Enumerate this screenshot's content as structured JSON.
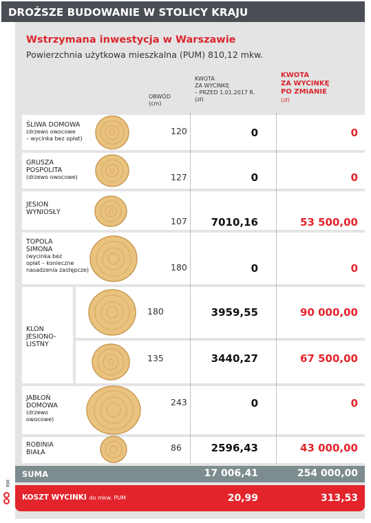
{
  "header": {
    "title": "DROŻSZE BUDOWANIE W STOLICY KRAJU"
  },
  "info": {
    "title": "Wstrzymana inwestycja  w Warszawie",
    "subtitle": "Powierzchnia użytkowa mieszkalna (PUM) 810,12 mkw."
  },
  "columns": {
    "circ_label": "OBWÓD",
    "circ_unit": "(cm)",
    "before_l1": "KWOTA",
    "before_l2": "ZA WYCINKĘ",
    "before_l3": "– PRZED 1.01.2017 R.",
    "before_unit": "(zł)",
    "after_l1": "KWOTA",
    "after_l2": "ZA WYCINKĘ",
    "after_l3": "PO ZMIANIE",
    "after_unit": "(zł)"
  },
  "rows": [
    {
      "name1": "ŚLIWA DOMOWA",
      "sub1": "(drzewo owocowe",
      "sub2": "– wycinka bez opłat)",
      "circ": "120",
      "before": "0",
      "after": "0"
    },
    {
      "name1": "GRUSZA",
      "name2": "POSPOLITA",
      "sub1": "(drzewo owocowe)",
      "circ": "127",
      "before": "0",
      "after": "0"
    },
    {
      "name1": "JESION",
      "name2": "WYNIOSŁY",
      "circ": "107",
      "before": "7010,16",
      "after": "53 500,00"
    },
    {
      "name1": "TOPOLA",
      "name2": "SIMONA",
      "sub1": "(wycinka bez",
      "sub2": "opłat – konieczne",
      "sub3": "nasadzenia zastępcze)",
      "circ": "180",
      "before": "0",
      "after": "0"
    },
    {
      "name1": "KLON",
      "name2": "JESIONO-",
      "name3": "LISTNY",
      "circ_a": "180",
      "before_a": "3959,55",
      "after_a": "90 000,00",
      "circ_b": "135",
      "before_b": "3440,27",
      "after_b": "67 500,00"
    },
    {
      "name1": "JABŁOŃ",
      "name2": "DOMOWA",
      "sub1": "(drzewo",
      "sub2": "owocowe)",
      "circ": "243",
      "before": "0",
      "after": "0"
    },
    {
      "name1": "ROBINIA",
      "name2": "BIAŁA",
      "circ": "86",
      "before": "2596,43",
      "after": "43 000,00"
    }
  ],
  "sum": {
    "label": "SUMA",
    "before": "17 006,41",
    "after": "254 000,00"
  },
  "cost": {
    "label": "KOSZT WYCINKI",
    "label_small": "do mkw. PUM",
    "before": "20,99",
    "after": "313,53"
  },
  "credit": "RM",
  "colors": {
    "accent": "#e3242b",
    "header": "#4a4e54",
    "sum": "#7d8c8f",
    "panel": "#e4e4e4",
    "wood": "#e9c27e"
  }
}
